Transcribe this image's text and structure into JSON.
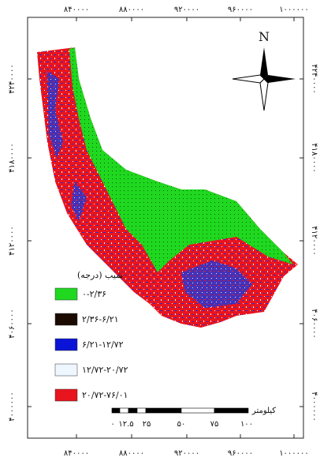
{
  "map": {
    "x_ticks": [
      "۸۴۰۰۰۰",
      "۸۸۰۰۰۰",
      "۹۲۰۰۰۰",
      "۹۶۰۰۰۰",
      "۱۰۰۰۰۰۰"
    ],
    "y_ticks": [
      "۴۲۴۰۰۰۰",
      "۴۱۸۰۰۰۰",
      "۴۱۲۰۰۰۰",
      "۴۰۶۰۰۰۰",
      "۴۰۰۰۰۰۰"
    ],
    "north": "N",
    "legend": {
      "title": "شیب (درجه)",
      "items": [
        {
          "label": "۰-۲/۳۶",
          "color": "#1fd81f"
        },
        {
          "label": "۲/۳۶-۶/۲۱",
          "color": "#1a0a00"
        },
        {
          "label": "۶/۲۱-۱۲/۷۲",
          "color": "#0a14d6"
        },
        {
          "label": "۱۲/۷۲-۲۰/۷۲",
          "color": "#eef6ff"
        },
        {
          "label": "۲۰/۷۲-۷۶/۰۱",
          "color": "#e8141e"
        }
      ]
    },
    "scale_bar": {
      "unit": "کیلومتر",
      "labels": [
        "۰",
        "۱۲.۵",
        "۲۵",
        "۵۰",
        "۷۵",
        "۱۰۰"
      ]
    }
  }
}
